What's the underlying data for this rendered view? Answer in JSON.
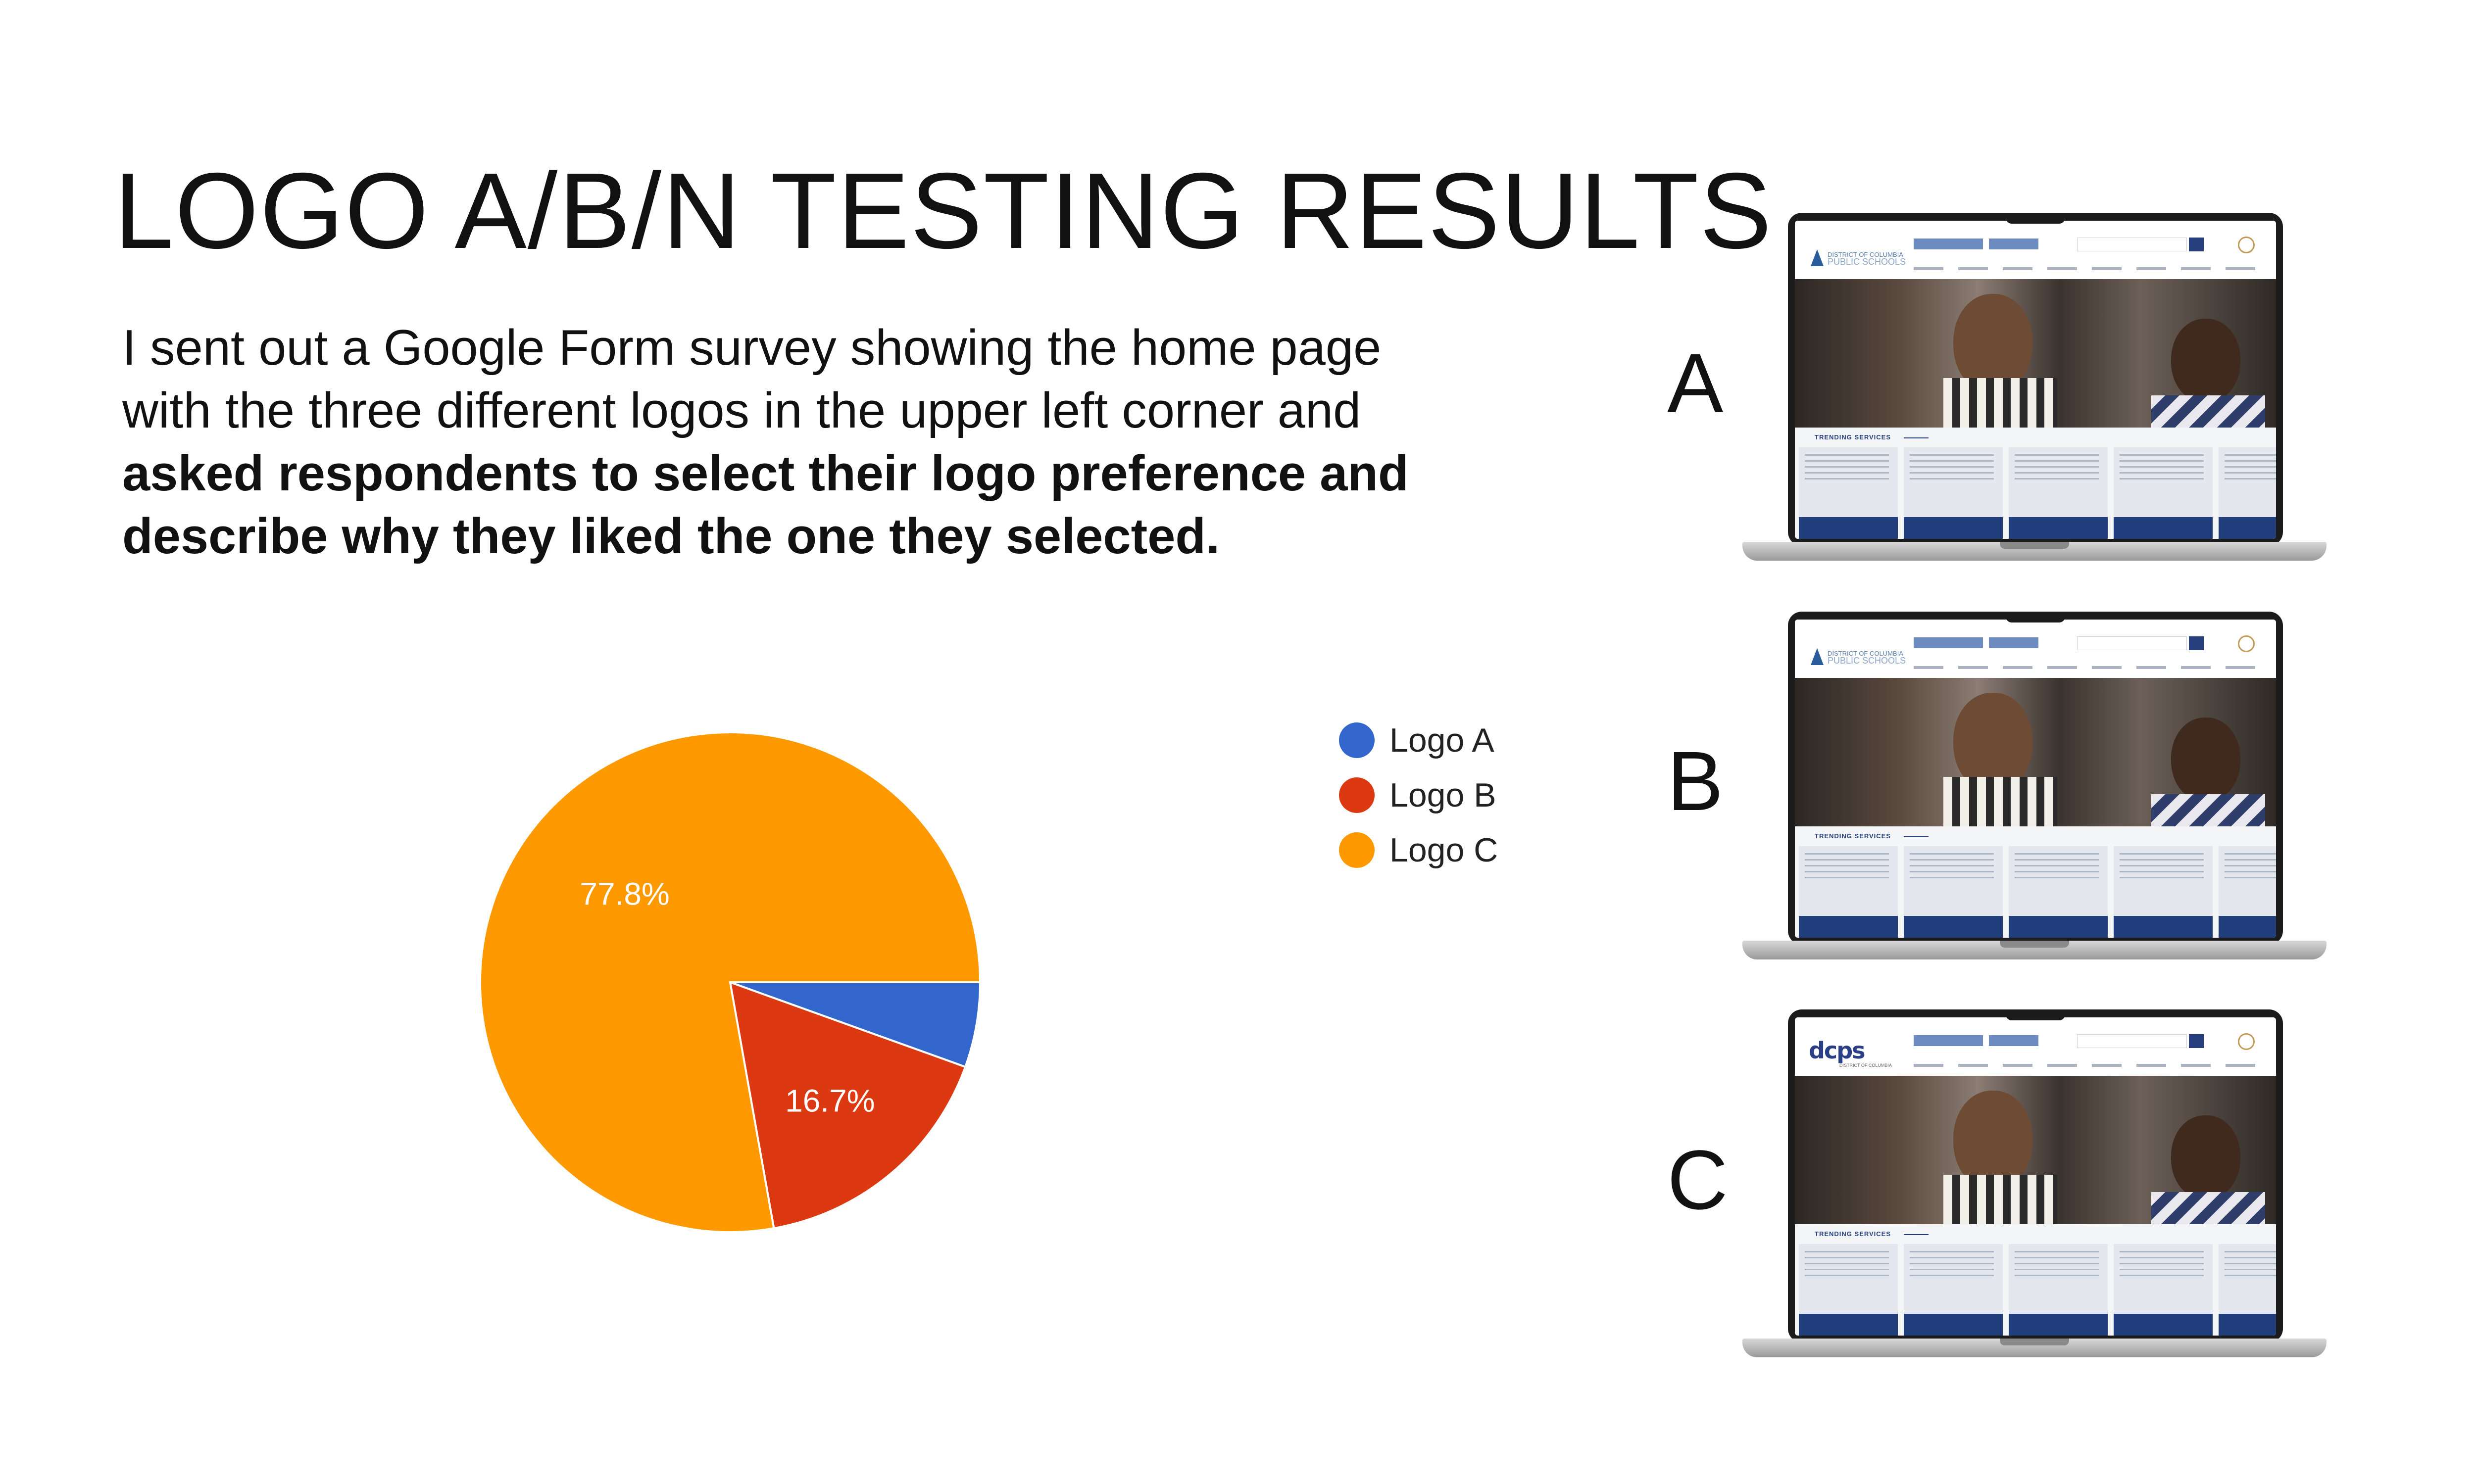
{
  "title": "LOGO A/B/N TESTING RESULTS",
  "description": {
    "plain": "I sent out a Google Form survey showing the home page with the three different logos in the upper left corner and ",
    "bold": "asked respondents to select their logo preference and describe why they liked the one they selected."
  },
  "chart_data": {
    "type": "pie",
    "categories": [
      "Logo A",
      "Logo B",
      "Logo C"
    ],
    "values": [
      5.5,
      16.7,
      77.8
    ],
    "data_labels": [
      "",
      "16.7%",
      "77.8%"
    ],
    "colors": [
      "#3366cc",
      "#dc3912",
      "#ff9900"
    ],
    "legend_position": "right",
    "start_angle_deg": 90,
    "direction": "clockwise"
  },
  "mockups": [
    {
      "letter": "A",
      "logo": "mountain-logo"
    },
    {
      "letter": "B",
      "logo": "mountain-logo"
    },
    {
      "letter": "C",
      "logo": "dcps-wordmark"
    }
  ],
  "mockup_text": {
    "logo_line1": "DISTRICT OF COLUMBIA",
    "logo_line2": "PUBLIC SCHOOLS",
    "dcps_wordmark": "dcps",
    "trending": "TRENDING SERVICES"
  }
}
